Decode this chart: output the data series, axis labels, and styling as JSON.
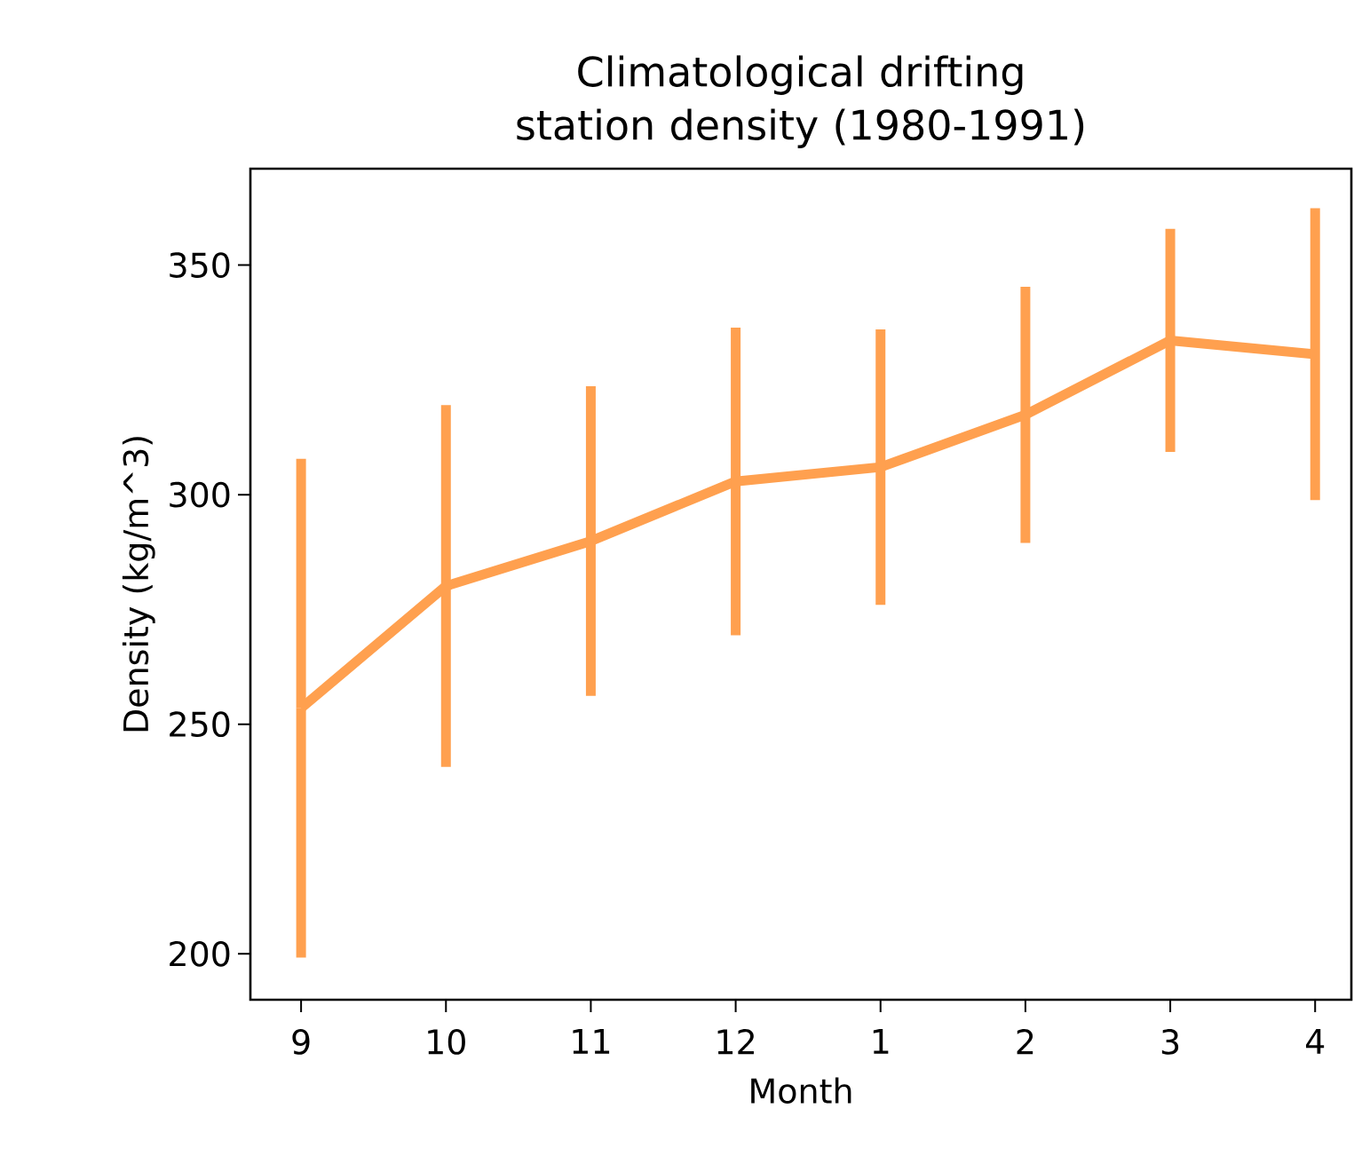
{
  "chart_data": {
    "type": "line",
    "title": "Climatological drifting station density (1980-1991)",
    "xlabel": "Month",
    "ylabel": "Density (kg/m^3)",
    "categories": [
      "9",
      "10",
      "11",
      "12",
      "1",
      "2",
      "3",
      "4"
    ],
    "values": [
      253.5,
      280.1,
      289.9,
      302.9,
      306,
      317.4,
      333.6,
      330.6
    ],
    "errors": [
      54.3,
      39.4,
      33.7,
      33.5,
      30,
      27.9,
      24.3,
      31.8
    ],
    "color": "#ffa04f",
    "ylim": [
      190,
      371
    ],
    "yticks": [
      200,
      250,
      300,
      350
    ],
    "grid": false,
    "marker": "none",
    "line_style": "solid"
  }
}
